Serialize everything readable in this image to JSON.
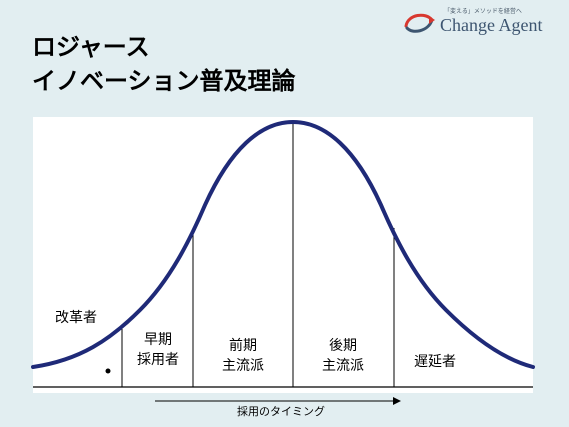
{
  "title": {
    "line1": "ロジャース",
    "line2": "イノベーション普及理論"
  },
  "logo": {
    "tagline": "「変える」メソッドを経営へ",
    "name": "Change Agent"
  },
  "segments": {
    "innovators": "改革者",
    "early_adopters": "早期\n採用者",
    "early_majority": "前期\n主流派",
    "late_majority": "後期\n主流派",
    "laggards": "遅延者"
  },
  "axis": {
    "caption": "採用のタイミング"
  },
  "colors": {
    "curve": "#1f2a78",
    "background": "#e2eef1"
  }
}
